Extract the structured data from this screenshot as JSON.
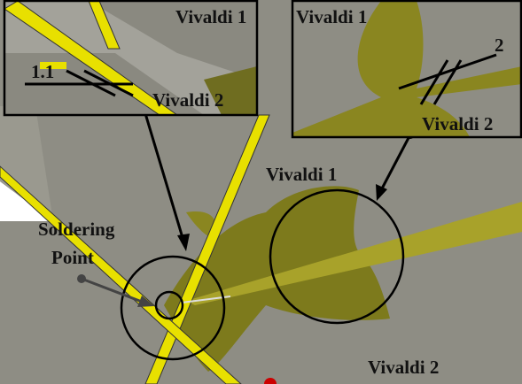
{
  "insets": [
    {
      "labels": [
        "Vivaldi 1",
        "Vivaldi 2"
      ],
      "dimension": "1.1"
    },
    {
      "labels": [
        "Vivaldi 1",
        "Vivaldi 2"
      ],
      "dimension": "2"
    }
  ],
  "main": {
    "labels": [
      "Vivaldi 1",
      "Vivaldi 2"
    ],
    "callout": [
      "Soldering",
      "Point"
    ]
  }
}
